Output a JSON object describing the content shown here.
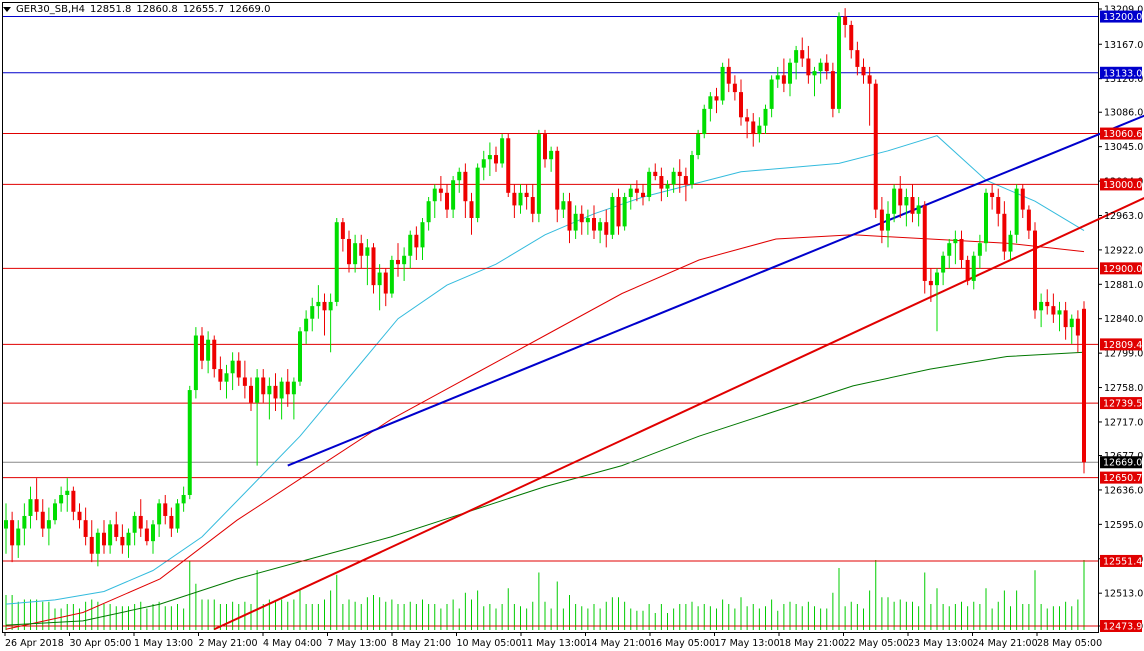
{
  "header": {
    "symbol": "GER30_SB,H4",
    "open": "12851.8",
    "high": "12860.8",
    "low": "12655.7",
    "close": "12669.0"
  },
  "chart_data": {
    "type": "candlestick",
    "symbol": "GER30_SB",
    "timeframe": "H4",
    "ylim": [
      12473.9,
      13209.0
    ],
    "y_ticks": [
      "13209.0",
      "13167.0",
      "13126.0",
      "13086.0",
      "13045.0",
      "13004.0",
      "12963.0",
      "12922.0",
      "12881.0",
      "12840.0",
      "12799.0",
      "12758.0",
      "12717.0",
      "12677.0",
      "12636.0",
      "12595.0",
      "12554.0",
      "12513.0",
      "12473.9"
    ],
    "x_ticks": [
      "26 Apr 2018",
      "30 Apr 05:00",
      "1 May 13:00",
      "2 May 21:00",
      "4 May 04:00",
      "7 May 13:00",
      "8 May 21:00",
      "10 May 05:00",
      "11 May 13:00",
      "14 May 21:00",
      "16 May 05:00",
      "17 May 13:00",
      "18 May 21:00",
      "22 May 05:00",
      "23 May 13:00",
      "24 May 21:00",
      "28 May 05:00"
    ],
    "horizontal_levels": [
      {
        "value": 13200.0,
        "label": "13200.0",
        "color": "#0000cc"
      },
      {
        "value": 13133.0,
        "label": "13133.0",
        "color": "#0000cc"
      },
      {
        "value": 13060.6,
        "label": "13060.6",
        "color": "#e00000"
      },
      {
        "value": 13000.0,
        "label": "13000.0",
        "color": "#e00000"
      },
      {
        "value": 12900.0,
        "label": "12900.0",
        "color": "#e00000"
      },
      {
        "value": 12809.4,
        "label": "12809.4",
        "color": "#e00000"
      },
      {
        "value": 12739.5,
        "label": "12739.5",
        "color": "#e00000"
      },
      {
        "value": 12650.7,
        "label": "12650.7",
        "color": "#e00000"
      },
      {
        "value": 12551.4,
        "label": "12551.4",
        "color": "#e00000"
      },
      {
        "value": 12473.9,
        "label": "12473.9",
        "color": "#e00000"
      }
    ],
    "current_price": {
      "value": 12669.0,
      "label": "12669.0"
    },
    "trendlines": [
      {
        "name": "blue-trendline",
        "color": "#0000cc",
        "from": [
          46,
          12665
        ],
        "to": [
          202,
          13130
        ]
      },
      {
        "name": "red-trendline",
        "color": "#e00000",
        "from": [
          34,
          12470
        ],
        "to": [
          211,
          13069
        ]
      }
    ],
    "candles": [
      [
        12590,
        12620,
        12560,
        12600
      ],
      [
        12600,
        12610,
        12550,
        12570
      ],
      [
        12570,
        12600,
        12555,
        12590
      ],
      [
        12590,
        12620,
        12570,
        12605
      ],
      [
        12605,
        12640,
        12590,
        12625
      ],
      [
        12625,
        12650,
        12600,
        12610
      ],
      [
        12610,
        12625,
        12580,
        12590
      ],
      [
        12590,
        12615,
        12570,
        12600
      ],
      [
        12600,
        12625,
        12595,
        12620
      ],
      [
        12620,
        12640,
        12610,
        12630
      ],
      [
        12630,
        12650,
        12610,
        12635
      ],
      [
        12635,
        12640,
        12600,
        12610
      ],
      [
        12610,
        12620,
        12590,
        12600
      ],
      [
        12600,
        12615,
        12570,
        12580
      ],
      [
        12580,
        12600,
        12550,
        12560
      ],
      [
        12560,
        12590,
        12545,
        12585
      ],
      [
        12585,
        12600,
        12560,
        12570
      ],
      [
        12570,
        12600,
        12560,
        12595
      ],
      [
        12595,
        12610,
        12575,
        12580
      ],
      [
        12580,
        12595,
        12560,
        12570
      ],
      [
        12570,
        12590,
        12555,
        12585
      ],
      [
        12585,
        12610,
        12570,
        12605
      ],
      [
        12605,
        12625,
        12580,
        12590
      ],
      [
        12590,
        12600,
        12570,
        12575
      ],
      [
        12575,
        12600,
        12560,
        12595
      ],
      [
        12595,
        12625,
        12580,
        12620
      ],
      [
        12620,
        12630,
        12595,
        12605
      ],
      [
        12605,
        12615,
        12580,
        12590
      ],
      [
        12590,
        12625,
        12585,
        12620
      ],
      [
        12620,
        12640,
        12610,
        12630
      ],
      [
        12630,
        12760,
        12625,
        12755
      ],
      [
        12755,
        12830,
        12745,
        12820
      ],
      [
        12820,
        12830,
        12780,
        12790
      ],
      [
        12790,
        12825,
        12775,
        12815
      ],
      [
        12815,
        12820,
        12770,
        12780
      ],
      [
        12780,
        12795,
        12755,
        12765
      ],
      [
        12765,
        12785,
        12745,
        12775
      ],
      [
        12775,
        12800,
        12755,
        12790
      ],
      [
        12790,
        12800,
        12760,
        12770
      ],
      [
        12770,
        12790,
        12745,
        12760
      ],
      [
        12760,
        12770,
        12730,
        12740
      ],
      [
        12740,
        12780,
        12665,
        12770
      ],
      [
        12770,
        12780,
        12740,
        12750
      ],
      [
        12750,
        12770,
        12720,
        12760
      ],
      [
        12760,
        12775,
        12730,
        12745
      ],
      [
        12745,
        12770,
        12720,
        12765
      ],
      [
        12765,
        12780,
        12735,
        12750
      ],
      [
        12750,
        12770,
        12720,
        12765
      ],
      [
        12765,
        12830,
        12760,
        12825
      ],
      [
        12825,
        12850,
        12810,
        12840
      ],
      [
        12840,
        12865,
        12825,
        12855
      ],
      [
        12855,
        12880,
        12840,
        12860
      ],
      [
        12860,
        12870,
        12820,
        12850
      ],
      [
        12850,
        12870,
        12800,
        12860
      ],
      [
        12860,
        12960,
        12855,
        12955
      ],
      [
        12955,
        12960,
        12920,
        12935
      ],
      [
        12935,
        12945,
        12895,
        12905
      ],
      [
        12905,
        12940,
        12895,
        12930
      ],
      [
        12930,
        12940,
        12900,
        12915
      ],
      [
        12915,
        12935,
        12880,
        12925
      ],
      [
        12925,
        12930,
        12870,
        12880
      ],
      [
        12880,
        12905,
        12850,
        12895
      ],
      [
        12895,
        12900,
        12855,
        12870
      ],
      [
        12870,
        12915,
        12865,
        12910
      ],
      [
        12910,
        12930,
        12890,
        12905
      ],
      [
        12905,
        12925,
        12885,
        12915
      ],
      [
        12915,
        12945,
        12900,
        12940
      ],
      [
        12940,
        12950,
        12910,
        12925
      ],
      [
        12925,
        12960,
        12910,
        12955
      ],
      [
        12955,
        12985,
        12945,
        12980
      ],
      [
        12980,
        13000,
        12960,
        12995
      ],
      [
        12995,
        13010,
        12980,
        12990
      ],
      [
        12990,
        13000,
        12960,
        12970
      ],
      [
        12970,
        13010,
        12960,
        13005
      ],
      [
        13005,
        13020,
        12990,
        13015
      ],
      [
        13015,
        13025,
        12960,
        12980
      ],
      [
        12980,
        12990,
        12940,
        12960
      ],
      [
        12960,
        13025,
        12955,
        13020
      ],
      [
        13020,
        13040,
        13005,
        13030
      ],
      [
        13030,
        13050,
        13010,
        13035
      ],
      [
        13035,
        13045,
        13015,
        13025
      ],
      [
        13025,
        13060,
        13020,
        13055
      ],
      [
        13055,
        13060,
        12985,
        12990
      ],
      [
        12990,
        13000,
        12960,
        12975
      ],
      [
        12975,
        13000,
        12965,
        12990
      ],
      [
        12990,
        13000,
        12970,
        12985
      ],
      [
        12985,
        13000,
        12955,
        12965
      ],
      [
        12965,
        13065,
        12955,
        13060
      ],
      [
        13060,
        13065,
        13020,
        13030
      ],
      [
        13030,
        13045,
        13015,
        13040
      ],
      [
        13040,
        13045,
        12955,
        12970
      ],
      [
        12970,
        12990,
        12960,
        12980
      ],
      [
        12980,
        12990,
        12930,
        12945
      ],
      [
        12945,
        12975,
        12935,
        12965
      ],
      [
        12965,
        12975,
        12940,
        12955
      ],
      [
        12955,
        12970,
        12940,
        12960
      ],
      [
        12960,
        12975,
        12935,
        12945
      ],
      [
        12945,
        12960,
        12930,
        12955
      ],
      [
        12955,
        12970,
        12925,
        12940
      ],
      [
        12940,
        12990,
        12935,
        12985
      ],
      [
        12985,
        12995,
        12940,
        12950
      ],
      [
        12950,
        12990,
        12945,
        12985
      ],
      [
        12985,
        13000,
        12970,
        12995
      ],
      [
        12995,
        13005,
        12980,
        12990
      ],
      [
        12990,
        13000,
        12975,
        12985
      ],
      [
        12985,
        13020,
        12980,
        13015
      ],
      [
        13015,
        13025,
        13005,
        13010
      ],
      [
        13010,
        13020,
        12980,
        12995
      ],
      [
        12995,
        13005,
        12985,
        13000
      ],
      [
        13000,
        13020,
        12990,
        13015
      ],
      [
        13015,
        13030,
        12990,
        13010
      ],
      [
        13010,
        13020,
        12980,
        13000
      ],
      [
        13000,
        13040,
        12995,
        13035
      ],
      [
        13035,
        13065,
        13030,
        13060
      ],
      [
        13060,
        13095,
        13055,
        13090
      ],
      [
        13090,
        13110,
        13075,
        13105
      ],
      [
        13105,
        13115,
        13085,
        13100
      ],
      [
        13100,
        13145,
        13095,
        13140
      ],
      [
        13140,
        13150,
        13110,
        13120
      ],
      [
        13120,
        13130,
        13100,
        13110
      ],
      [
        13110,
        13125,
        13070,
        13080
      ],
      [
        13080,
        13090,
        13055,
        13075
      ],
      [
        13075,
        13085,
        13045,
        13060
      ],
      [
        13060,
        13080,
        13050,
        13070
      ],
      [
        13070,
        13095,
        13060,
        13090
      ],
      [
        13090,
        13130,
        13080,
        13125
      ],
      [
        13125,
        13140,
        13115,
        13130
      ],
      [
        13130,
        13150,
        13110,
        13120
      ],
      [
        13120,
        13150,
        13105,
        13145
      ],
      [
        13145,
        13165,
        13125,
        13160
      ],
      [
        13160,
        13175,
        13140,
        13150
      ],
      [
        13150,
        13165,
        13120,
        13130
      ],
      [
        13130,
        13140,
        13105,
        13135
      ],
      [
        13135,
        13150,
        13120,
        13145
      ],
      [
        13145,
        13155,
        13125,
        13135
      ],
      [
        13135,
        13145,
        13080,
        13090
      ],
      [
        13090,
        13205,
        13085,
        13200
      ],
      [
        13200,
        13210,
        13175,
        13190
      ],
      [
        13190,
        13195,
        13150,
        13160
      ],
      [
        13160,
        13170,
        13130,
        13140
      ],
      [
        13140,
        13150,
        13120,
        13130
      ],
      [
        13130,
        13140,
        13070,
        13120
      ],
      [
        13120,
        13125,
        12960,
        12970
      ],
      [
        12970,
        12985,
        12930,
        12945
      ],
      [
        12945,
        12980,
        12925,
        12965
      ],
      [
        12965,
        13000,
        12955,
        12995
      ],
      [
        12995,
        13010,
        12960,
        12975
      ],
      [
        12975,
        12995,
        12950,
        12985
      ],
      [
        12985,
        13000,
        12955,
        12965
      ],
      [
        12965,
        12985,
        12950,
        12975
      ],
      [
        12975,
        12980,
        12870,
        12885
      ],
      [
        12885,
        12900,
        12860,
        12880
      ],
      [
        12880,
        12900,
        12825,
        12895
      ],
      [
        12895,
        12920,
        12880,
        12915
      ],
      [
        12915,
        12935,
        12900,
        12930
      ],
      [
        12930,
        12945,
        12905,
        12935
      ],
      [
        12935,
        12945,
        12900,
        12910
      ],
      [
        12910,
        12915,
        12880,
        12885
      ],
      [
        12885,
        12920,
        12875,
        12915
      ],
      [
        12915,
        12940,
        12900,
        12930
      ],
      [
        12930,
        12995,
        12920,
        12990
      ],
      [
        12990,
        13000,
        12970,
        12985
      ],
      [
        12985,
        12995,
        12950,
        12965
      ],
      [
        12965,
        12980,
        12910,
        12920
      ],
      [
        12920,
        12945,
        12910,
        12940
      ],
      [
        12940,
        13000,
        12930,
        12995
      ],
      [
        12995,
        13000,
        12960,
        12970
      ],
      [
        12970,
        12975,
        12935,
        12945
      ],
      [
        12945,
        12955,
        12840,
        12850
      ],
      [
        12850,
        12870,
        12830,
        12860
      ],
      [
        12860,
        12875,
        12845,
        12855
      ],
      [
        12855,
        12870,
        12835,
        12845
      ],
      [
        12845,
        12860,
        12825,
        12850
      ],
      [
        12850,
        12860,
        12815,
        12830
      ],
      [
        12830,
        12845,
        12810,
        12840
      ],
      [
        12840,
        12850,
        12800,
        12820
      ],
      [
        12851.8,
        12860.8,
        12655.7,
        12669.0
      ]
    ],
    "ma_fast": {
      "color": "#33bbdd",
      "values": [
        12500,
        12505,
        12515,
        12540,
        12580,
        12640,
        12700,
        12770,
        12840,
        12880,
        12905,
        12940,
        12965,
        12985,
        13000,
        13015,
        13020,
        13025,
        13040,
        13058,
        13005,
        12980,
        12945
      ]
    },
    "ma_mid": {
      "color": "#e00000",
      "values": [
        12470,
        12490,
        12530,
        12600,
        12660,
        12720,
        12770,
        12820,
        12870,
        12910,
        12935,
        12940,
        12935,
        12930,
        12920
      ]
    },
    "ma_slow": {
      "color": "#007700",
      "values": [
        12475,
        12480,
        12500,
        12530,
        12555,
        12580,
        12610,
        12640,
        12665,
        12700,
        12730,
        12760,
        12780,
        12795,
        12800
      ]
    }
  }
}
